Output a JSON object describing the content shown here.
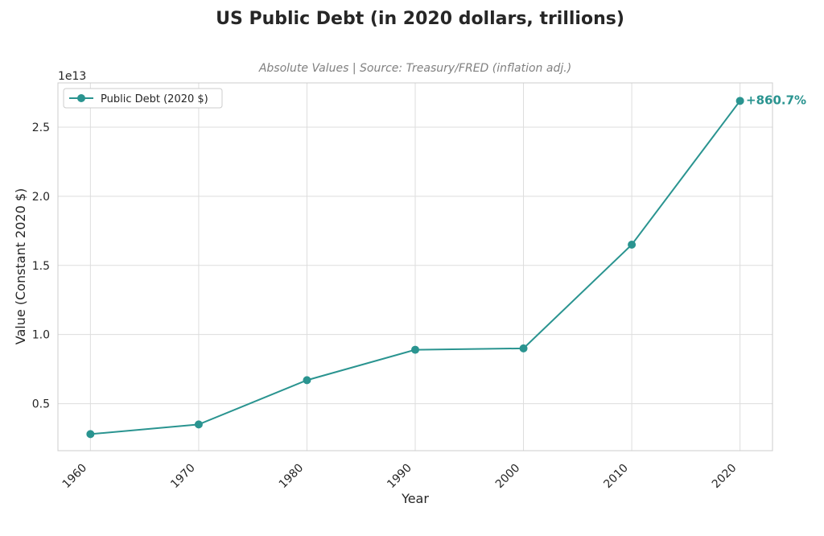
{
  "chart_data": {
    "type": "line",
    "title": "US Public Debt (in 2020 dollars, trillions)",
    "subtitle": "Absolute Values | Source: Treasury/FRED (inflation adj.)",
    "xlabel": "Year",
    "ylabel": "Value (Constant 2020 $)",
    "y_offset_label": "1e13",
    "x": [
      1960,
      1970,
      1980,
      1990,
      2000,
      2010,
      2020
    ],
    "x_tick_labels": [
      "1960",
      "1970",
      "1980",
      "1990",
      "2000",
      "2010",
      "2020"
    ],
    "y_ticks": [
      0.5,
      1.0,
      1.5,
      2.0,
      2.5
    ],
    "y_tick_labels": [
      "0.5",
      "1.0",
      "1.5",
      "2.0",
      "2.5"
    ],
    "ylim": [
      0.16,
      2.82
    ],
    "xlim": [
      1957,
      2023
    ],
    "series": [
      {
        "name": "Public Debt (2020 $)",
        "values": [
          0.28,
          0.35,
          0.67,
          0.89,
          0.9,
          1.65,
          2.69
        ],
        "color": "#2a9490"
      }
    ],
    "annotation": {
      "text": "+860.7%",
      "at_x": 2020,
      "color": "#2a9490"
    },
    "legend_position": "top-left",
    "grid": true
  }
}
